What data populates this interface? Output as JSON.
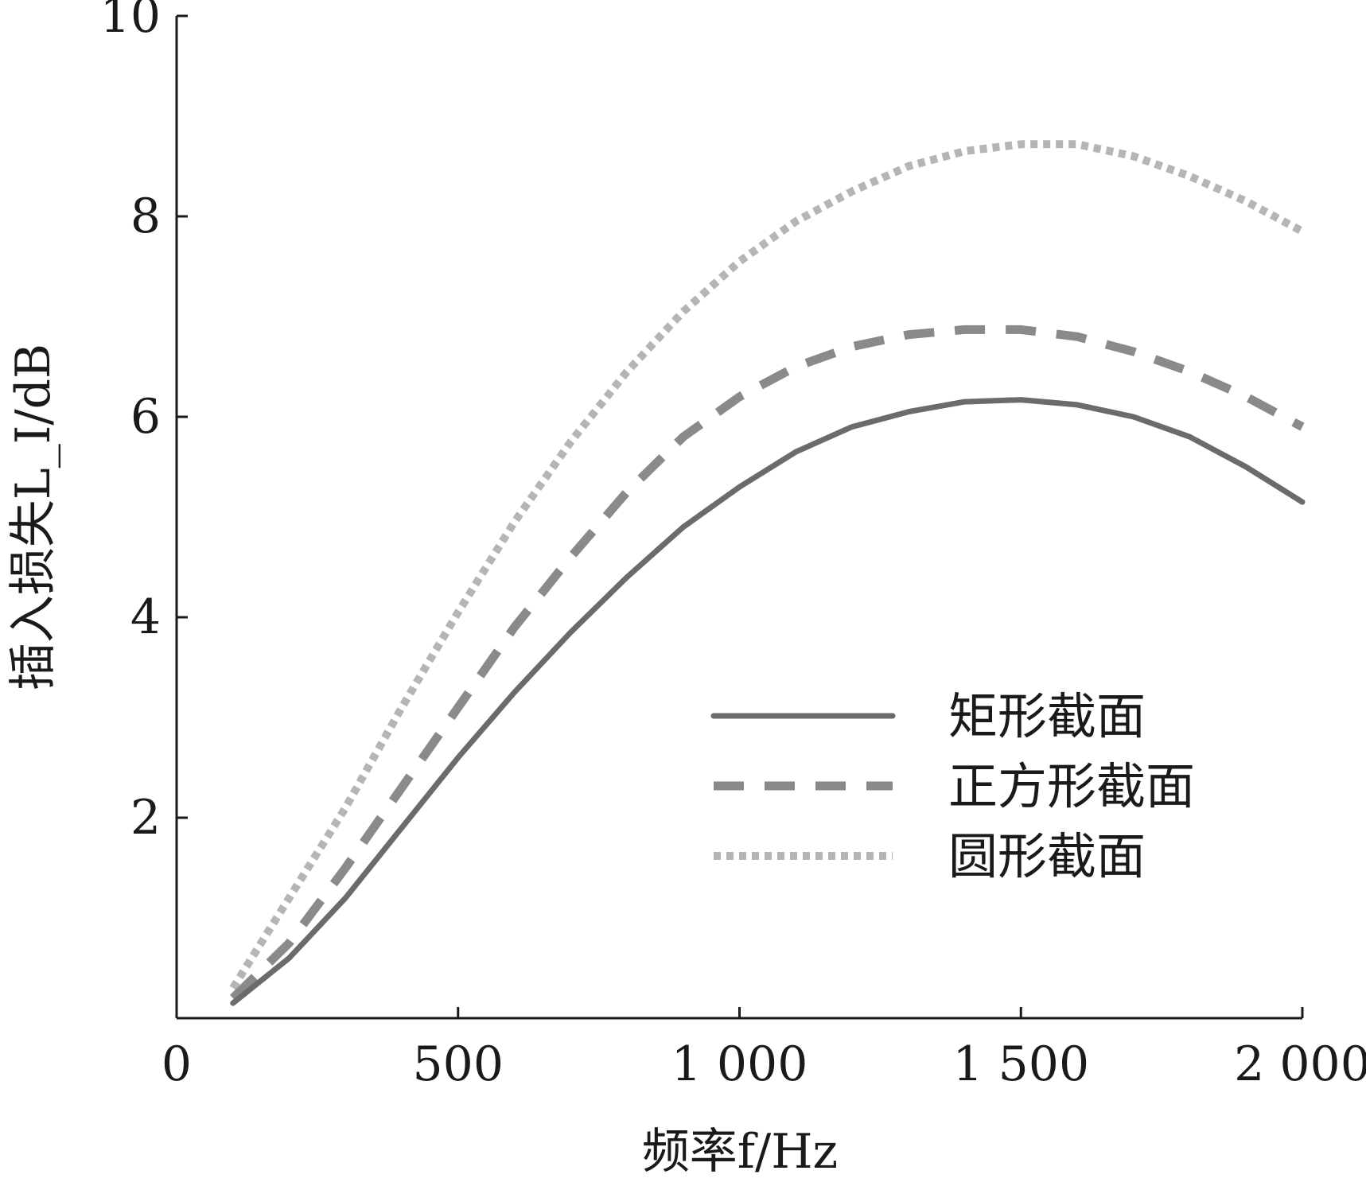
{
  "chart_data": {
    "type": "line",
    "title": "",
    "xlabel": "频率f/Hz",
    "ylabel": "插入损失L_I/dB",
    "xlim": [
      0,
      2000
    ],
    "ylim": [
      0,
      10
    ],
    "x_ticks": [
      0,
      500,
      1000,
      1500,
      2000
    ],
    "x_tick_labels": [
      "0",
      "500",
      "1 000",
      "1 500",
      "2 000"
    ],
    "y_ticks": [
      2,
      4,
      6,
      8,
      10
    ],
    "y_tick_labels": [
      "2",
      "4",
      "6",
      "8",
      "10"
    ],
    "grid": false,
    "legend_position": "lower-right",
    "x": [
      100,
      200,
      300,
      400,
      500,
      600,
      700,
      800,
      900,
      1000,
      1100,
      1200,
      1300,
      1400,
      1500,
      1600,
      1700,
      1800,
      1900,
      2000
    ],
    "series": [
      {
        "name": "矩形截面",
        "style": "solid",
        "color": "#6b6b6b",
        "values": [
          0.15,
          0.6,
          1.2,
          1.9,
          2.6,
          3.25,
          3.85,
          4.4,
          4.9,
          5.3,
          5.65,
          5.9,
          6.05,
          6.15,
          6.17,
          6.12,
          6.0,
          5.8,
          5.5,
          5.15
        ]
      },
      {
        "name": "正方形截面",
        "style": "dashed",
        "color": "#8a8a8a",
        "values": [
          0.2,
          0.75,
          1.5,
          2.3,
          3.1,
          3.9,
          4.6,
          5.25,
          5.8,
          6.2,
          6.5,
          6.7,
          6.82,
          6.87,
          6.87,
          6.8,
          6.65,
          6.45,
          6.2,
          5.9
        ]
      },
      {
        "name": "圆形截面",
        "style": "dotted",
        "color": "#b5b5b5",
        "values": [
          0.3,
          1.2,
          2.1,
          3.1,
          4.05,
          4.95,
          5.75,
          6.45,
          7.05,
          7.55,
          7.95,
          8.25,
          8.5,
          8.65,
          8.72,
          8.72,
          8.6,
          8.4,
          8.15,
          7.85
        ]
      }
    ]
  }
}
